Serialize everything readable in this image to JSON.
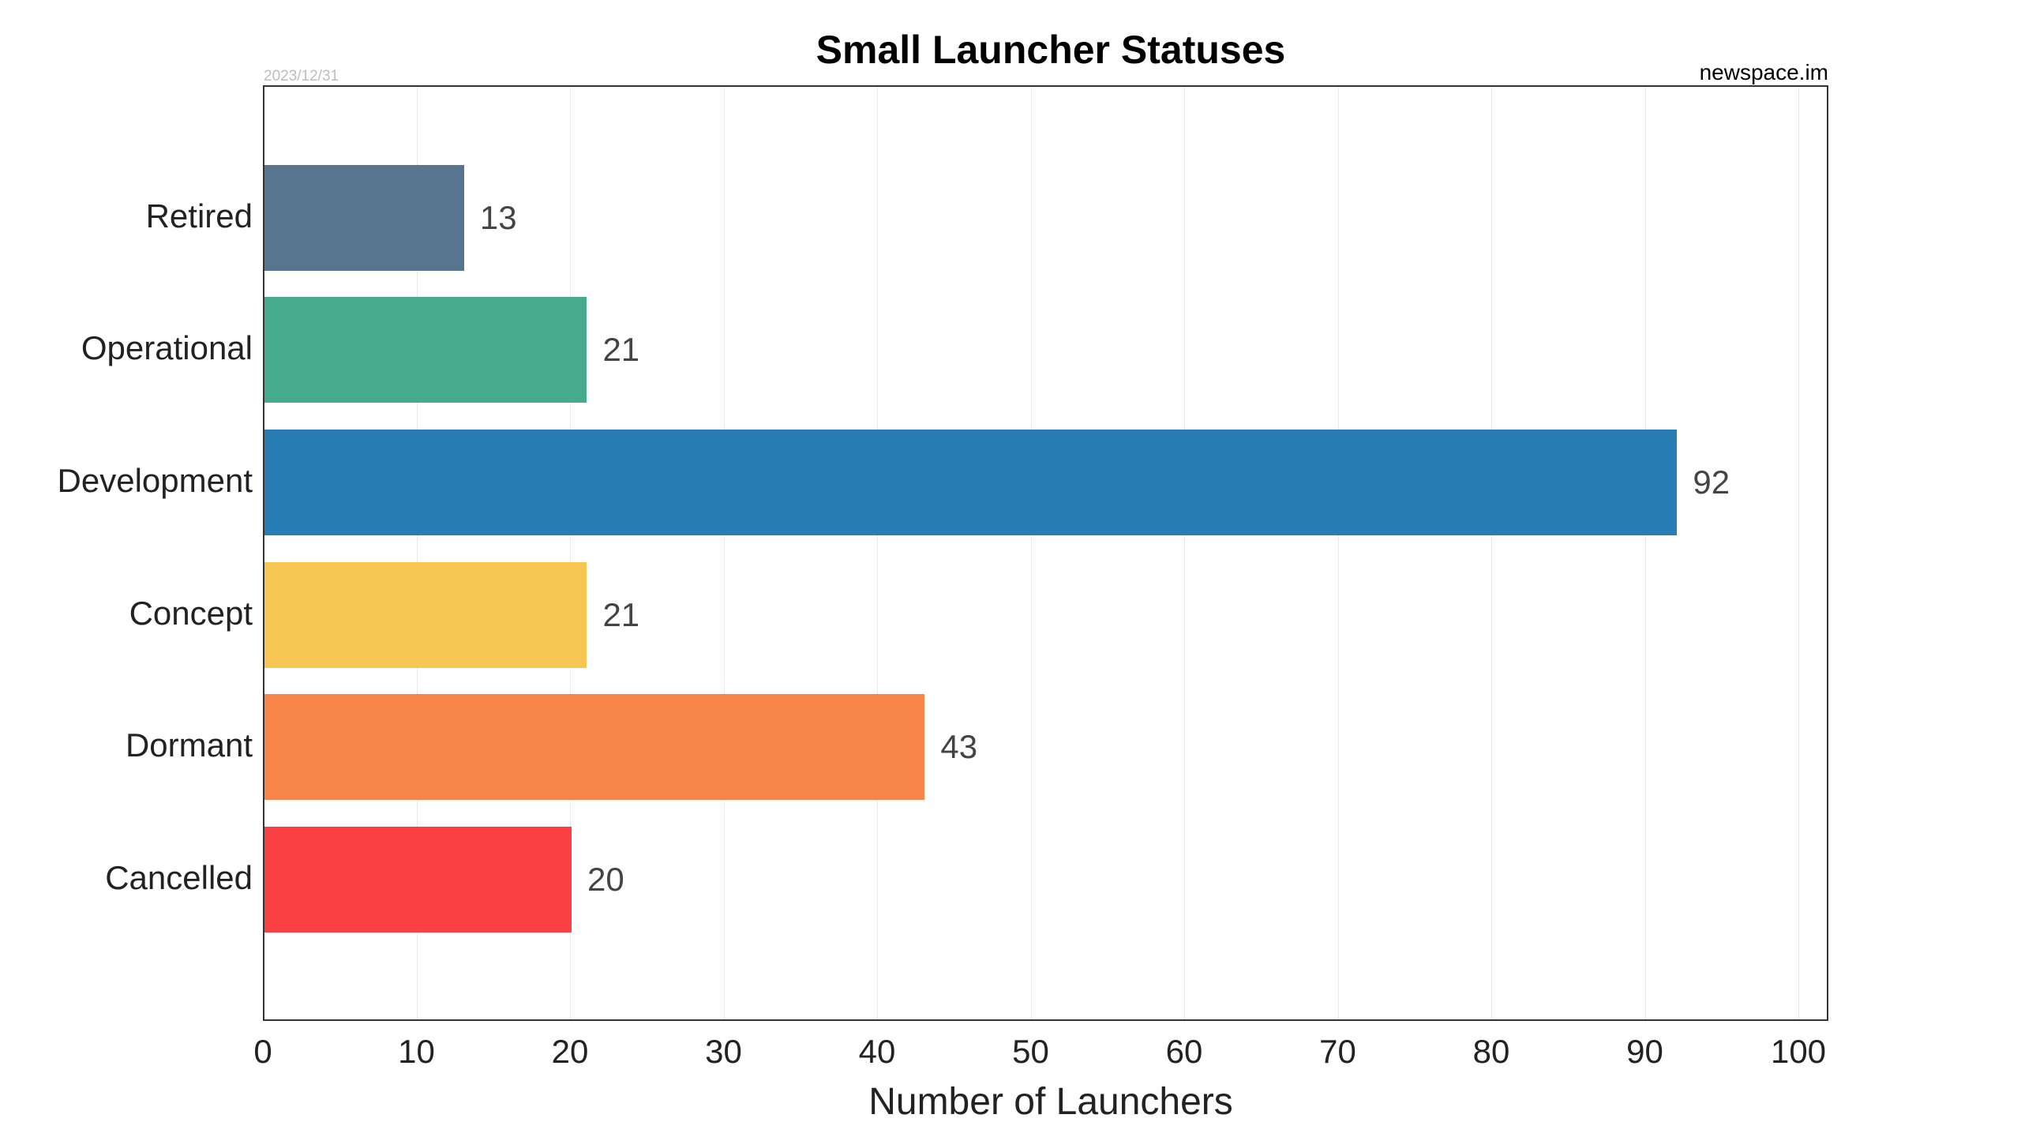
{
  "header": {
    "title": "Small Launcher Statuses",
    "date": "2023/12/31",
    "source": "newspace.im"
  },
  "axis": {
    "xlabel": "Number of Launchers",
    "ticks": [
      "0",
      "10",
      "20",
      "30",
      "40",
      "50",
      "60",
      "70",
      "80",
      "90",
      "100"
    ]
  },
  "bars": [
    {
      "label": "Retired",
      "value": "13",
      "color": "#57758f"
    },
    {
      "label": "Operational",
      "value": "21",
      "color": "#45ab8b"
    },
    {
      "label": "Development",
      "value": "92",
      "color": "#287db5"
    },
    {
      "label": "Concept",
      "value": "21",
      "color": "#f7c551"
    },
    {
      "label": "Dormant",
      "value": "43",
      "color": "#f7854a"
    },
    {
      "label": "Cancelled",
      "value": "20",
      "color": "#f94144"
    }
  ],
  "chart_data": {
    "type": "bar",
    "orientation": "horizontal",
    "title": "Small Launcher Statuses",
    "subtitle_left": "2023/12/31",
    "subtitle_right": "newspace.im",
    "categories": [
      "Retired",
      "Operational",
      "Development",
      "Concept",
      "Dormant",
      "Cancelled"
    ],
    "values": [
      13,
      21,
      92,
      21,
      43,
      20
    ],
    "colors": [
      "#57758f",
      "#45ab8b",
      "#287db5",
      "#f7c551",
      "#f7854a",
      "#f94144"
    ],
    "xlabel": "Number of Launchers",
    "ylabel": "",
    "xlim": [
      0,
      102
    ],
    "xticks": [
      0,
      10,
      20,
      30,
      40,
      50,
      60,
      70,
      80,
      90,
      100
    ],
    "grid": "vertical dotted",
    "data_labels": true,
    "legend": "none"
  }
}
